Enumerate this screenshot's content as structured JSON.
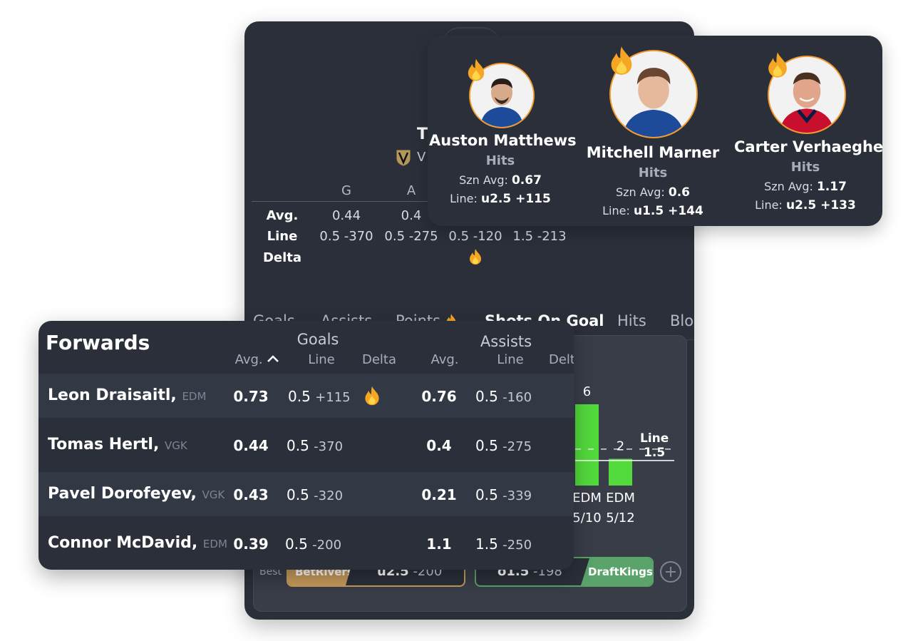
{
  "game": {
    "title_partial": "T",
    "team_partial": "V",
    "stat_headers": [
      "G",
      "A"
    ],
    "rows": [
      {
        "label": "Avg.",
        "values": [
          "0.44",
          "0.4",
          "",
          ""
        ]
      },
      {
        "label": "Line",
        "values": [
          "0.5 -370",
          "0.5 -275",
          "0.5 -120",
          "1.5 -213"
        ]
      },
      {
        "label": "Delta",
        "values": [
          "",
          "",
          "",
          ""
        ]
      }
    ]
  },
  "tabs": [
    "Goals",
    "Assists",
    "Points",
    "Shots On Goal",
    "Hits",
    "Blo"
  ],
  "active_tab": "Shots On Goal",
  "chart_data": {
    "type": "bar",
    "categories": [
      "EDM 5/10",
      "EDM 5/12"
    ],
    "values": [
      6,
      2
    ],
    "line_label": "Line",
    "line_value": "1.5",
    "bar_labels": [
      "6",
      "2"
    ],
    "x_labels_top": [
      "EDM",
      "EDM"
    ],
    "x_labels_bottom": [
      "5/10",
      "5/12"
    ],
    "bar_color": "#52d93c"
  },
  "odds": {
    "best_label": "Best",
    "left": {
      "book": "BetRivers",
      "line": "u2.5",
      "odds": "-200"
    },
    "right": {
      "line": "o1.5",
      "odds": "-198",
      "book": "DraftKings"
    },
    "add_icon": "plus-circle-icon"
  },
  "players": [
    {
      "name": "Auston Matthews",
      "market": "Hits",
      "szn_label": "Szn Avg:",
      "szn_avg": "0.67",
      "line_label": "Line:",
      "line": "u2.5 +115"
    },
    {
      "name": "Mitchell Marner",
      "market": "Hits",
      "szn_label": "Szn Avg:",
      "szn_avg": "0.6",
      "line_label": "Line:",
      "line": "u1.5 +144"
    },
    {
      "name": "Carter Verhaeghe",
      "market": "Hits",
      "szn_label": "Szn Avg:",
      "szn_avg": "1.17",
      "line_label": "Line:",
      "line": "u2.5 +133"
    }
  ],
  "forwards": {
    "title": "Forwards",
    "groups": [
      {
        "label": "Goals"
      },
      {
        "label": "Assists"
      }
    ],
    "subheaders": [
      "Avg.",
      "Line",
      "Delta",
      "Avg.",
      "Line",
      "Delt"
    ],
    "rows": [
      {
        "name": "Leon Draisaitl,",
        "team": "EDM",
        "g_avg": "0.73",
        "g_line": "0.5",
        "g_odds": "+115",
        "hot": true,
        "a_avg": "0.76",
        "a_line": "0.5",
        "a_odds": "-160"
      },
      {
        "name": "Tomas Hertl,",
        "team": "VGK",
        "g_avg": "0.44",
        "g_line": "0.5",
        "g_odds": "-370",
        "hot": false,
        "a_avg": "0.4",
        "a_line": "0.5",
        "a_odds": "-275"
      },
      {
        "name": "Pavel Dorofeyev,",
        "team": "VGK",
        "g_avg": "0.43",
        "g_line": "0.5",
        "g_odds": "-320",
        "hot": false,
        "a_avg": "0.21",
        "a_line": "0.5",
        "a_odds": "-339"
      },
      {
        "name": "Connor McDavid,",
        "team": "EDM",
        "g_avg": "0.39",
        "g_line": "0.5",
        "g_odds": "-200",
        "hot": false,
        "a_avg": "1.1",
        "a_line": "1.5",
        "a_odds": "-250"
      }
    ]
  },
  "colors": {
    "accent": "#f07d2b",
    "bar": "#52d93c",
    "panel": "#2b2f39",
    "flame": "#f5a623"
  }
}
